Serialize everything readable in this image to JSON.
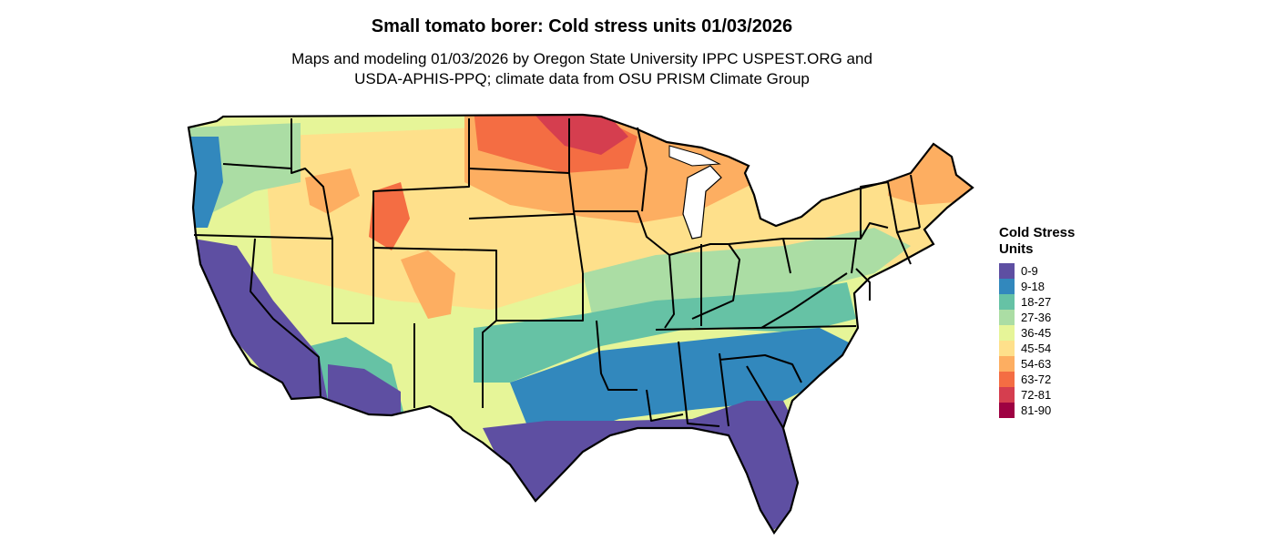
{
  "title": "Small tomato borer: Cold stress units 01/03/2026",
  "subtitle_line1": "Maps and modeling 01/03/2026 by Oregon State University IPPC USPEST.ORG and",
  "subtitle_line2": "USDA-APHIS-PPQ; climate data from OSU PRISM Climate Group",
  "legend": {
    "title_line1": "Cold Stress",
    "title_line2": "Units",
    "items": [
      {
        "label": "0-9",
        "color": "#5E4FA2"
      },
      {
        "label": "9-18",
        "color": "#3288BD"
      },
      {
        "label": "18-27",
        "color": "#66C2A5"
      },
      {
        "label": "27-36",
        "color": "#ABDDA4"
      },
      {
        "label": "36-45",
        "color": "#E6F598"
      },
      {
        "label": "45-54",
        "color": "#FEE08B"
      },
      {
        "label": "54-63",
        "color": "#FDAE61"
      },
      {
        "label": "63-72",
        "color": "#F46D43"
      },
      {
        "label": "72-81",
        "color": "#D53E4F"
      },
      {
        "label": "81-90",
        "color": "#9E0142"
      }
    ]
  }
}
